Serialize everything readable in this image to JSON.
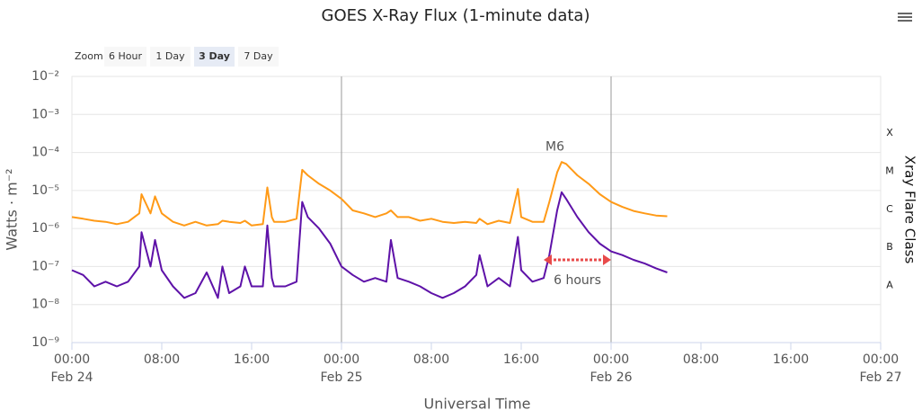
{
  "chart_data": {
    "type": "line",
    "title": "GOES X-Ray Flux (1-minute data)",
    "zoom": {
      "label": "Zoom",
      "buttons": [
        "6 Hour",
        "1 Day",
        "3 Day",
        "7 Day"
      ],
      "selected": 2
    },
    "x_label": "Universal Time",
    "y_label": "Watts · m⁻²",
    "y2_label": "Xray Flare Class",
    "log_y": true,
    "grid": true,
    "x": [
      "Feb 24 00:00",
      "Feb 24 01:00",
      "Feb 24 02:00",
      "Feb 24 03:00",
      "Feb 24 04:00",
      "Feb 24 05:00",
      "Feb 24 06:00",
      "Feb 24 06:12",
      "Feb 24 07:00",
      "Feb 24 07:24",
      "Feb 24 08:00",
      "Feb 24 09:00",
      "Feb 24 10:00",
      "Feb 24 11:00",
      "Feb 24 12:00",
      "Feb 24 13:00",
      "Feb 24 13:24",
      "Feb 24 14:00",
      "Feb 24 15:00",
      "Feb 24 15:24",
      "Feb 24 16:00",
      "Feb 24 17:00",
      "Feb 24 17:24",
      "Feb 24 17:48",
      "Feb 24 18:00",
      "Feb 24 19:00",
      "Feb 24 20:00",
      "Feb 24 20:30",
      "Feb 24 21:00",
      "Feb 24 22:00",
      "Feb 24 23:00",
      "Feb 25 00:00",
      "Feb 25 01:00",
      "Feb 25 02:00",
      "Feb 25 03:00",
      "Feb 25 04:00",
      "Feb 25 04:24",
      "Feb 25 05:00",
      "Feb 25 06:00",
      "Feb 25 07:00",
      "Feb 25 08:00",
      "Feb 25 09:00",
      "Feb 25 10:00",
      "Feb 25 11:00",
      "Feb 25 12:00",
      "Feb 25 12:18",
      "Feb 25 13:00",
      "Feb 25 14:00",
      "Feb 25 15:00",
      "Feb 25 15:42",
      "Feb 25 16:00",
      "Feb 25 17:00",
      "Feb 25 18:00",
      "Feb 25 18:30",
      "Feb 25 19:12",
      "Feb 25 19:36",
      "Feb 25 20:00",
      "Feb 25 21:00",
      "Feb 25 22:00",
      "Feb 25 23:00",
      "Feb 26 00:00",
      "Feb 26 01:00",
      "Feb 26 02:00",
      "Feb 26 03:00",
      "Feb 26 04:00",
      "Feb 26 05:00"
    ],
    "series": [
      {
        "color": "#ff9a17",
        "values": [
          2e-06,
          1.8e-06,
          1.6e-06,
          1.5e-06,
          1.3e-06,
          1.5e-06,
          2.5e-06,
          8e-06,
          2.5e-06,
          7e-06,
          2.5e-06,
          1.5e-06,
          1.2e-06,
          1.5e-06,
          1.2e-06,
          1.3e-06,
          1.6e-06,
          1.5e-06,
          1.4e-06,
          1.6e-06,
          1.2e-06,
          1.3e-06,
          1.2e-05,
          2e-06,
          1.5e-06,
          1.5e-06,
          1.8e-06,
          3.5e-05,
          2.5e-05,
          1.5e-05,
          1e-05,
          6e-06,
          3e-06,
          2.5e-06,
          2e-06,
          2.5e-06,
          3e-06,
          2e-06,
          2e-06,
          1.6e-06,
          1.8e-06,
          1.5e-06,
          1.4e-06,
          1.5e-06,
          1.4e-06,
          1.8e-06,
          1.3e-06,
          1.6e-06,
          1.4e-06,
          1.1e-05,
          2e-06,
          1.5e-06,
          1.5e-06,
          5e-06,
          3e-05,
          5.6e-05,
          5e-05,
          2.5e-05,
          1.5e-05,
          8e-06,
          5e-06,
          3.7e-06,
          2.9e-06,
          2.5e-06,
          2.2e-06,
          2.1e-06
        ]
      },
      {
        "color": "#5e12a8",
        "values": [
          8e-08,
          6e-08,
          3e-08,
          4e-08,
          3e-08,
          4e-08,
          1e-07,
          8e-07,
          1e-07,
          5e-07,
          8e-08,
          3e-08,
          1.5e-08,
          2e-08,
          7e-08,
          1.5e-08,
          1e-07,
          2e-08,
          3e-08,
          1e-07,
          3e-08,
          3e-08,
          1.2e-06,
          5e-08,
          3e-08,
          3e-08,
          4e-08,
          5e-06,
          2e-06,
          1e-06,
          4e-07,
          1e-07,
          6e-08,
          4e-08,
          5e-08,
          4e-08,
          5e-07,
          5e-08,
          4e-08,
          3e-08,
          2e-08,
          1.5e-08,
          2e-08,
          3e-08,
          6e-08,
          2e-07,
          3e-08,
          5e-08,
          3e-08,
          6e-07,
          8e-08,
          4e-08,
          5e-08,
          2e-07,
          3e-06,
          9e-06,
          6e-06,
          2e-06,
          8e-07,
          4e-07,
          2.5e-07,
          2e-07,
          1.5e-07,
          1.2e-07,
          9e-08,
          7e-08
        ]
      }
    ],
    "xlim": [
      "Feb 24 00:00",
      "Feb 27 00:00"
    ],
    "xticks": [
      {
        "value": "Feb 24 00:00",
        "label": [
          "00:00",
          "Feb 24"
        ]
      },
      {
        "value": "Feb 24 08:00",
        "label": "08:00"
      },
      {
        "value": "Feb 24 16:00",
        "label": "16:00"
      },
      {
        "value": "Feb 25 00:00",
        "label": [
          "00:00",
          "Feb 25"
        ]
      },
      {
        "value": "Feb 25 08:00",
        "label": "08:00"
      },
      {
        "value": "Feb 25 16:00",
        "label": "16:00"
      },
      {
        "value": "Feb 26 00:00",
        "label": [
          "00:00",
          "Feb 26"
        ]
      },
      {
        "value": "Feb 26 08:00",
        "label": "08:00"
      },
      {
        "value": "Feb 26 16:00",
        "label": "16:00"
      },
      {
        "value": "Feb 27 00:00",
        "label": [
          "00:00",
          "Feb 27"
        ]
      }
    ],
    "ylim": [
      1e-09,
      0.01
    ],
    "yticks": [
      {
        "value": 1e-09,
        "label": "10⁻⁹"
      },
      {
        "value": 1e-08,
        "label": "10⁻⁸"
      },
      {
        "value": 1e-07,
        "label": "10⁻⁷"
      },
      {
        "value": 1e-06,
        "label": "10⁻⁶"
      },
      {
        "value": 1e-05,
        "label": "10⁻⁵"
      },
      {
        "value": 0.0001,
        "label": "10⁻⁴"
      },
      {
        "value": 0.001,
        "label": "10⁻³"
      },
      {
        "value": 0.01,
        "label": "10⁻²"
      }
    ],
    "y2lim": [
      1e-09,
      0.01
    ],
    "y2ticks": [
      {
        "value": 3.2e-08,
        "label": "A"
      },
      {
        "value": 3.2e-07,
        "label": "B"
      },
      {
        "value": 3.2e-06,
        "label": "C"
      },
      {
        "value": 3.2e-05,
        "label": "M"
      },
      {
        "value": 0.00032,
        "label": "X"
      }
    ],
    "annotations": [
      {
        "text": "M6",
        "x": "Feb 25 19:00",
        "y": 0.0001,
        "color": "#e84a4a"
      },
      {
        "text": "6 hours",
        "x": [
          "Feb 25 18:00",
          "Feb 26 00:00"
        ],
        "y": 1.5e-07,
        "color": "#e84a4a"
      }
    ]
  }
}
